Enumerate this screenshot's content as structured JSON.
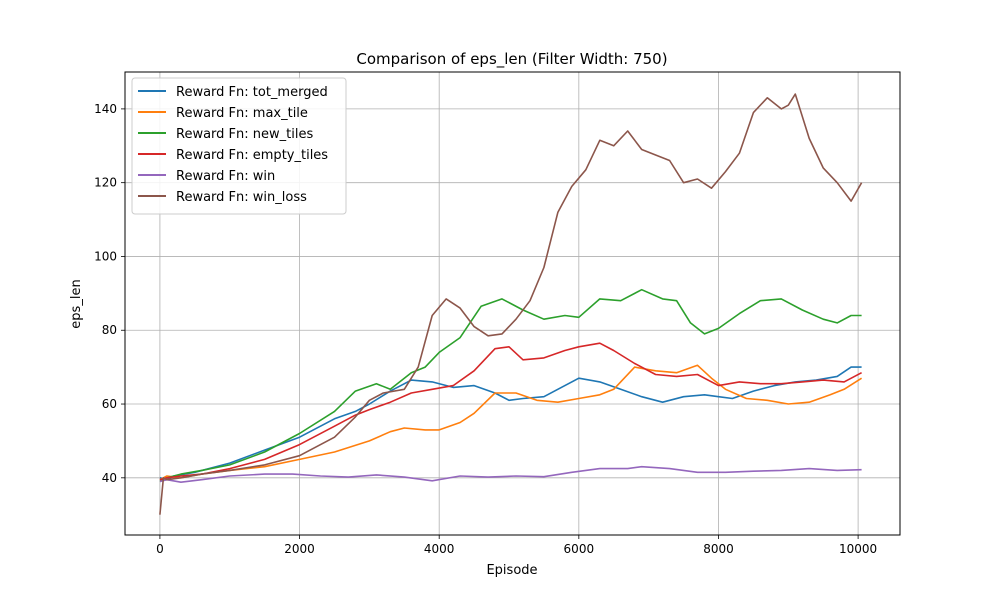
{
  "chart_data": {
    "type": "line",
    "title": "Comparison of eps_len (Filter Width: 750)",
    "xlabel": "Episode",
    "ylabel": "eps_len",
    "xlim": [
      -500,
      10600
    ],
    "ylim": [
      24.5,
      150
    ],
    "xticks": [
      0,
      2000,
      4000,
      6000,
      8000,
      10000
    ],
    "yticks": [
      40,
      60,
      80,
      100,
      120,
      140
    ],
    "grid": true,
    "legend_position": "top-left",
    "series": [
      {
        "name": "Reward Fn: tot_merged",
        "color": "#1f77b4",
        "x": [
          0,
          100,
          200,
          500,
          1000,
          1500,
          2000,
          2500,
          2800,
          3000,
          3300,
          3600,
          3900,
          4200,
          4500,
          4800,
          5000,
          5200,
          5500,
          5800,
          6000,
          6300,
          6600,
          6900,
          7200,
          7500,
          7800,
          8000,
          8200,
          8500,
          8800,
          9100,
          9400,
          9700,
          9900,
          10050
        ],
        "y": [
          40,
          39.5,
          40.5,
          41.5,
          44,
          47.5,
          51,
          56,
          58,
          60,
          63.5,
          66.5,
          66,
          64.5,
          65,
          63,
          61,
          61.5,
          62,
          65,
          67,
          66,
          64,
          62,
          60.5,
          62,
          62.5,
          62,
          61.5,
          63.5,
          65,
          66,
          66.5,
          67.5,
          70,
          70
        ]
      },
      {
        "name": "Reward Fn: max_tile",
        "color": "#ff7f0e",
        "x": [
          0,
          100,
          300,
          600,
          1000,
          1500,
          2000,
          2500,
          3000,
          3300,
          3500,
          3800,
          4000,
          4300,
          4500,
          4800,
          5100,
          5400,
          5700,
          6000,
          6300,
          6500,
          6800,
          7100,
          7400,
          7700,
          7900,
          8100,
          8400,
          8700,
          9000,
          9300,
          9600,
          9800,
          10050
        ],
        "y": [
          39.5,
          40.5,
          40,
          41,
          42,
          43,
          45,
          47,
          50,
          52.5,
          53.5,
          53,
          53,
          55,
          57.5,
          63,
          63,
          61,
          60.5,
          61.5,
          62.5,
          64,
          70,
          69,
          68.5,
          70.5,
          67,
          64,
          61.5,
          61,
          60,
          60.5,
          62.5,
          64,
          67
        ]
      },
      {
        "name": "Reward Fn: new_tiles",
        "color": "#2ca02c",
        "x": [
          0,
          100,
          300,
          600,
          1000,
          1500,
          2000,
          2500,
          2800,
          3100,
          3300,
          3600,
          3800,
          4000,
          4300,
          4600,
          4900,
          5200,
          5500,
          5800,
          6000,
          6300,
          6600,
          6900,
          7200,
          7400,
          7600,
          7800,
          8000,
          8300,
          8600,
          8900,
          9200,
          9500,
          9700,
          9900,
          10050
        ],
        "y": [
          39,
          40,
          41,
          42,
          43.5,
          47,
          52,
          58,
          63.5,
          65.5,
          64,
          68.5,
          70,
          74,
          78,
          86.5,
          88.5,
          85.5,
          83,
          84,
          83.5,
          88.5,
          88,
          91,
          88.5,
          88,
          82,
          79,
          80.5,
          84.5,
          88,
          88.5,
          85.5,
          83,
          82,
          84,
          84
        ]
      },
      {
        "name": "Reward Fn: empty_tiles",
        "color": "#d62728",
        "x": [
          0,
          100,
          300,
          600,
          1000,
          1500,
          2000,
          2500,
          2800,
          3000,
          3300,
          3600,
          3900,
          4200,
          4500,
          4800,
          5000,
          5200,
          5500,
          5800,
          6000,
          6300,
          6500,
          6800,
          7100,
          7400,
          7700,
          8000,
          8300,
          8600,
          8900,
          9200,
          9500,
          9800,
          10050
        ],
        "y": [
          39.5,
          40,
          40.5,
          41,
          42.5,
          45,
          49,
          54,
          57,
          58.5,
          60.5,
          63,
          64,
          65,
          69,
          75,
          75.5,
          72,
          72.5,
          74.5,
          75.5,
          76.5,
          74.5,
          71,
          68,
          67.5,
          68,
          65,
          66,
          65.5,
          65.5,
          66,
          66.5,
          66,
          68.5
        ]
      },
      {
        "name": "Reward Fn: win",
        "color": "#9467bd",
        "x": [
          0,
          100,
          300,
          600,
          1000,
          1500,
          1900,
          2300,
          2700,
          3100,
          3500,
          3900,
          4300,
          4700,
          5100,
          5500,
          5900,
          6300,
          6700,
          6900,
          7300,
          7700,
          8100,
          8500,
          8900,
          9300,
          9700,
          10050
        ],
        "y": [
          39,
          39.5,
          38.8,
          39.5,
          40.5,
          41,
          41,
          40.5,
          40.2,
          40.8,
          40.2,
          39.2,
          40.5,
          40.2,
          40.5,
          40.3,
          41.5,
          42.5,
          42.5,
          43,
          42.5,
          41.5,
          41.5,
          41.8,
          42,
          42.5,
          42,
          42.2
        ]
      },
      {
        "name": "Reward Fn: win_loss",
        "color": "#8c564b",
        "x": [
          0,
          50,
          100,
          300,
          600,
          1000,
          1500,
          2000,
          2500,
          2800,
          3000,
          3200,
          3500,
          3700,
          3900,
          4100,
          4300,
          4500,
          4700,
          4900,
          5100,
          5300,
          5500,
          5700,
          5900,
          6100,
          6300,
          6500,
          6700,
          6900,
          7100,
          7300,
          7500,
          7700,
          7900,
          8100,
          8300,
          8500,
          8700,
          8900,
          9000,
          9100,
          9300,
          9500,
          9700,
          9900,
          10050
        ],
        "y": [
          30,
          40,
          39.5,
          40,
          41,
          42,
          43.5,
          46,
          51,
          56.5,
          61,
          63,
          64,
          70,
          84,
          88.5,
          86,
          81,
          78.5,
          79,
          83,
          88,
          97,
          112,
          119,
          123.5,
          131.5,
          130,
          134,
          129,
          127.5,
          126,
          120,
          121,
          118.5,
          123,
          128,
          139,
          143,
          140,
          141,
          144,
          132,
          124,
          120,
          115,
          120
        ]
      }
    ]
  }
}
